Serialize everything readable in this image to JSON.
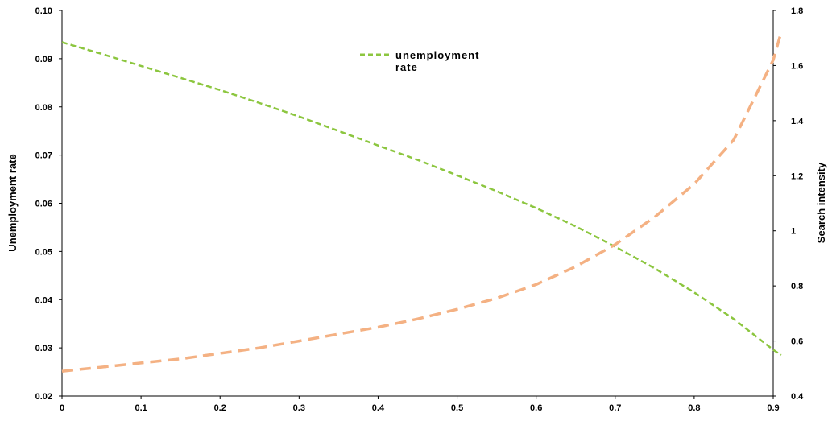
{
  "chart_data": {
    "type": "line",
    "title": "",
    "xlabel": "",
    "ylabel_left": "Unemployment rate",
    "ylabel_right": "Search intensity",
    "xlim": [
      0,
      0.9
    ],
    "x_ticks": [
      "0",
      "0.1",
      "0.2",
      "0.3",
      "0.4",
      "0.5",
      "0.6",
      "0.7",
      "0.8",
      "0.9"
    ],
    "ylim_left": [
      0.02,
      0.1
    ],
    "y_left_ticks": [
      "0.02",
      "0.03",
      "0.04",
      "0.05",
      "0.06",
      "0.07",
      "0.08",
      "0.09",
      "0.10"
    ],
    "ylim_right": [
      0.4,
      1.8
    ],
    "y_right_ticks": [
      "0.4",
      "0.6",
      "0.8",
      "1",
      "1.2",
      "1.4",
      "1.6",
      "1.8"
    ],
    "grid": false,
    "legend": {
      "placement": "top-center",
      "label_line1": "unemployment",
      "label_line2": "rate"
    },
    "series": [
      {
        "name": "unemployment rate",
        "axis": "left",
        "color": "#8cc63f",
        "style": "dashed",
        "x": [
          0,
          0.05,
          0.1,
          0.15,
          0.2,
          0.25,
          0.3,
          0.35,
          0.4,
          0.45,
          0.5,
          0.55,
          0.6,
          0.65,
          0.7,
          0.75,
          0.8,
          0.85,
          0.9,
          0.91
        ],
        "values": [
          0.0934,
          0.091,
          0.0885,
          0.086,
          0.0835,
          0.0808,
          0.078,
          0.075,
          0.072,
          0.069,
          0.0658,
          0.0625,
          0.059,
          0.0552,
          0.051,
          0.0465,
          0.0415,
          0.036,
          0.0296,
          0.0285
        ]
      },
      {
        "axis": "right",
        "color": "#f4b183",
        "style": "dashed",
        "x": [
          0,
          0.05,
          0.1,
          0.15,
          0.2,
          0.25,
          0.3,
          0.35,
          0.4,
          0.45,
          0.5,
          0.55,
          0.6,
          0.65,
          0.7,
          0.75,
          0.8,
          0.85,
          0.9,
          0.91
        ],
        "values": [
          0.49,
          0.505,
          0.52,
          0.535,
          0.555,
          0.575,
          0.6,
          0.625,
          0.65,
          0.68,
          0.715,
          0.755,
          0.805,
          0.87,
          0.95,
          1.05,
          1.17,
          1.33,
          1.62,
          1.72
        ]
      }
    ]
  }
}
